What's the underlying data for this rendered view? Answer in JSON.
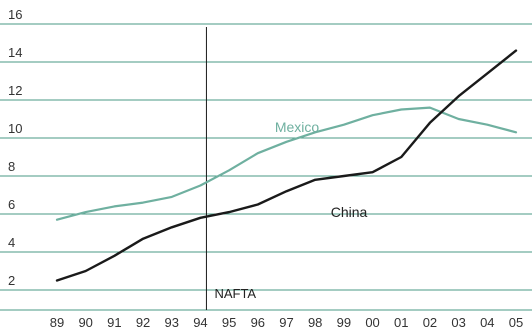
{
  "chart_data": {
    "type": "line",
    "title": "",
    "xlabel": "",
    "ylabel": "",
    "categories": [
      "89",
      "90",
      "91",
      "92",
      "93",
      "94",
      "95",
      "96",
      "97",
      "98",
      "99",
      "00",
      "01",
      "02",
      "03",
      "04",
      "05"
    ],
    "ylim": [
      1,
      16
    ],
    "yticks": [
      2,
      4,
      6,
      8,
      10,
      12,
      14,
      16
    ],
    "grid": true,
    "series": [
      {
        "name": "Mexico",
        "color": "#6fb0a0",
        "values": [
          5.7,
          6.1,
          6.4,
          6.6,
          6.9,
          7.5,
          8.3,
          9.2,
          9.8,
          10.3,
          10.7,
          11.2,
          11.5,
          11.6,
          11.0,
          10.7,
          10.3
        ]
      },
      {
        "name": "China",
        "color": "#1a1a1a",
        "values": [
          2.5,
          3.0,
          3.8,
          4.7,
          5.3,
          5.8,
          6.1,
          6.5,
          7.2,
          7.8,
          8.0,
          8.2,
          9.0,
          10.8,
          12.2,
          13.4,
          14.6
        ]
      }
    ],
    "annotations": [
      {
        "text": "NAFTA",
        "x": "94",
        "type": "vertical-line"
      }
    ],
    "grid_color": "#4a9a84"
  }
}
